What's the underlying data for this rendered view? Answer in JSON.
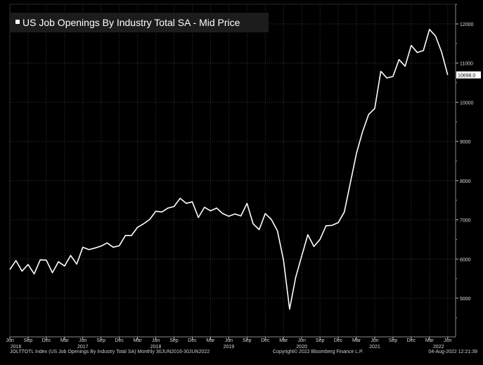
{
  "colors": {
    "background": "#000000",
    "plot_bg": "#000000",
    "grid": "#3a3a3a",
    "line": "#ffffff",
    "text": "#d9d9d9",
    "title_bg": "#1c1c1c",
    "last_label_bg": "#ffffff",
    "last_label_text": "#000000"
  },
  "chart_data": {
    "type": "line",
    "title": "US Job Openings By Industry Total SA - Mid Price",
    "xlabel": "",
    "ylabel": "",
    "ylim": [
      4000,
      12500
    ],
    "yticks": [
      5000,
      6000,
      7000,
      8000,
      9000,
      10000,
      11000,
      12000
    ],
    "ytick_labels": [
      "5000",
      "6000",
      "7000",
      "8000",
      "9000",
      "10000",
      "11000",
      "12000"
    ],
    "last_value_label": "10698.0",
    "grid": true,
    "x_month_ticks": [
      {
        "index": 0,
        "label": "Jun"
      },
      {
        "index": 3,
        "label": "Sep"
      },
      {
        "index": 6,
        "label": "Dec"
      },
      {
        "index": 9,
        "label": "Mar"
      },
      {
        "index": 12,
        "label": "Jun"
      },
      {
        "index": 15,
        "label": "Sep"
      },
      {
        "index": 18,
        "label": "Dec"
      },
      {
        "index": 21,
        "label": "Mar"
      },
      {
        "index": 24,
        "label": "Jun"
      },
      {
        "index": 27,
        "label": "Sep"
      },
      {
        "index": 30,
        "label": "Dec"
      },
      {
        "index": 33,
        "label": "Mar"
      },
      {
        "index": 36,
        "label": "Jun"
      },
      {
        "index": 39,
        "label": "Sep"
      },
      {
        "index": 42,
        "label": "Dec"
      },
      {
        "index": 45,
        "label": "Mar"
      },
      {
        "index": 48,
        "label": "Jun"
      },
      {
        "index": 51,
        "label": "Sep"
      },
      {
        "index": 54,
        "label": "Dec"
      },
      {
        "index": 57,
        "label": "Mar"
      },
      {
        "index": 60,
        "label": "Jun"
      },
      {
        "index": 63,
        "label": "Sep"
      },
      {
        "index": 66,
        "label": "Dec"
      },
      {
        "index": 69,
        "label": "Mar"
      },
      {
        "index": 72,
        "label": "Jun"
      }
    ],
    "x_year_ticks": [
      {
        "index": 1,
        "label": "2016"
      },
      {
        "index": 12,
        "label": "2017"
      },
      {
        "index": 24,
        "label": "2018"
      },
      {
        "index": 36,
        "label": "2019"
      },
      {
        "index": 48,
        "label": "2020"
      },
      {
        "index": 60,
        "label": "2021"
      },
      {
        "index": 70.5,
        "label": "2022"
      }
    ],
    "series": [
      {
        "name": "US Job Openings By Industry Total SA",
        "x": [
          "2016-06",
          "2016-07",
          "2016-08",
          "2016-09",
          "2016-10",
          "2016-11",
          "2016-12",
          "2017-01",
          "2017-02",
          "2017-03",
          "2017-04",
          "2017-05",
          "2017-06",
          "2017-07",
          "2017-08",
          "2017-09",
          "2017-10",
          "2017-11",
          "2017-12",
          "2018-01",
          "2018-02",
          "2018-03",
          "2018-04",
          "2018-05",
          "2018-06",
          "2018-07",
          "2018-08",
          "2018-09",
          "2018-10",
          "2018-11",
          "2018-12",
          "2019-01",
          "2019-02",
          "2019-03",
          "2019-04",
          "2019-05",
          "2019-06",
          "2019-07",
          "2019-08",
          "2019-09",
          "2019-10",
          "2019-11",
          "2019-12",
          "2020-01",
          "2020-02",
          "2020-03",
          "2020-04",
          "2020-05",
          "2020-06",
          "2020-07",
          "2020-08",
          "2020-09",
          "2020-10",
          "2020-11",
          "2020-12",
          "2021-01",
          "2021-02",
          "2021-03",
          "2021-04",
          "2021-05",
          "2021-06",
          "2021-07",
          "2021-08",
          "2021-09",
          "2021-10",
          "2021-11",
          "2021-12",
          "2022-01",
          "2022-02",
          "2022-03",
          "2022-04",
          "2022-05",
          "2022-06"
        ],
        "values": [
          5730,
          5960,
          5690,
          5860,
          5620,
          5980,
          5970,
          5650,
          5930,
          5820,
          6090,
          5870,
          6300,
          6240,
          6280,
          6330,
          6410,
          6300,
          6340,
          6600,
          6600,
          6810,
          6900,
          7010,
          7220,
          7200,
          7300,
          7340,
          7550,
          7420,
          7460,
          7060,
          7320,
          7230,
          7300,
          7160,
          7090,
          7150,
          7100,
          7420,
          6900,
          6750,
          7160,
          7010,
          6720,
          5970,
          4720,
          5530,
          6080,
          6620,
          6320,
          6500,
          6850,
          6860,
          6930,
          7200,
          7950,
          8700,
          9250,
          9690,
          9840,
          10790,
          10620,
          10660,
          11090,
          10920,
          11450,
          11270,
          11320,
          11860,
          11690,
          11280,
          10698
        ]
      }
    ]
  },
  "footer": {
    "left": "JOLTTOTL Index (US Job Openings By Industry Total SA)  Monthly 30JUN2016-30JUN2022",
    "center": "Copyright© 2022 Bloomberg Finance L.P.",
    "right": "04-Aug-2022 12:21:39"
  }
}
